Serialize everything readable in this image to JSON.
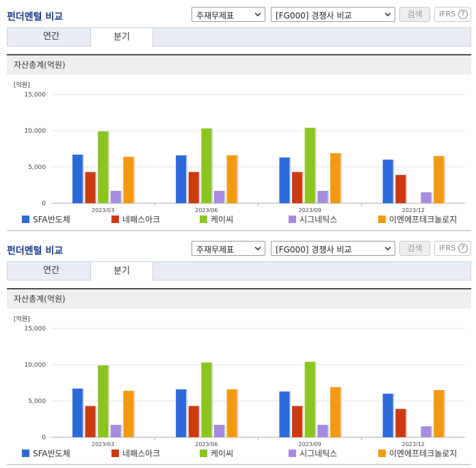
{
  "header": {
    "title": "펀더멘털 비교",
    "select_1": "주재무제표",
    "select_2": "[FG000] 경쟁사 비교",
    "search_label": "검색",
    "ifrs_label": "IFRS",
    "help_label": "?"
  },
  "tabs": [
    {
      "label": "연간",
      "active": false
    },
    {
      "label": "분기",
      "active": true
    }
  ],
  "section_title": "자산총계(억원)",
  "colors": {
    "title": "#1a3a8c",
    "series": [
      "#2e6ad9",
      "#cc3a10",
      "#8cc51e",
      "#a88be0",
      "#f59a10"
    ]
  },
  "chart_data": {
    "type": "bar",
    "unit_label": "[억원]",
    "categories": [
      "2023/03",
      "2023/06",
      "2023/09",
      "2023/12"
    ],
    "yticks": [
      "15,000",
      "10,000",
      "5,000",
      "0"
    ],
    "ylim": [
      0,
      15000
    ],
    "grid": true,
    "legend_position": "bottom",
    "series": [
      {
        "name": "SFA반도체",
        "values": [
          6700,
          6600,
          6300,
          6000
        ]
      },
      {
        "name": "네패스아크",
        "values": [
          4300,
          4300,
          4300,
          3900
        ]
      },
      {
        "name": "케이씨",
        "values": [
          9900,
          10300,
          10400,
          null
        ]
      },
      {
        "name": "시그네틱스",
        "values": [
          1700,
          1700,
          1700,
          1500
        ]
      },
      {
        "name": "이엔에프테크놀로지",
        "values": [
          6400,
          6600,
          6900,
          6500
        ]
      }
    ]
  }
}
